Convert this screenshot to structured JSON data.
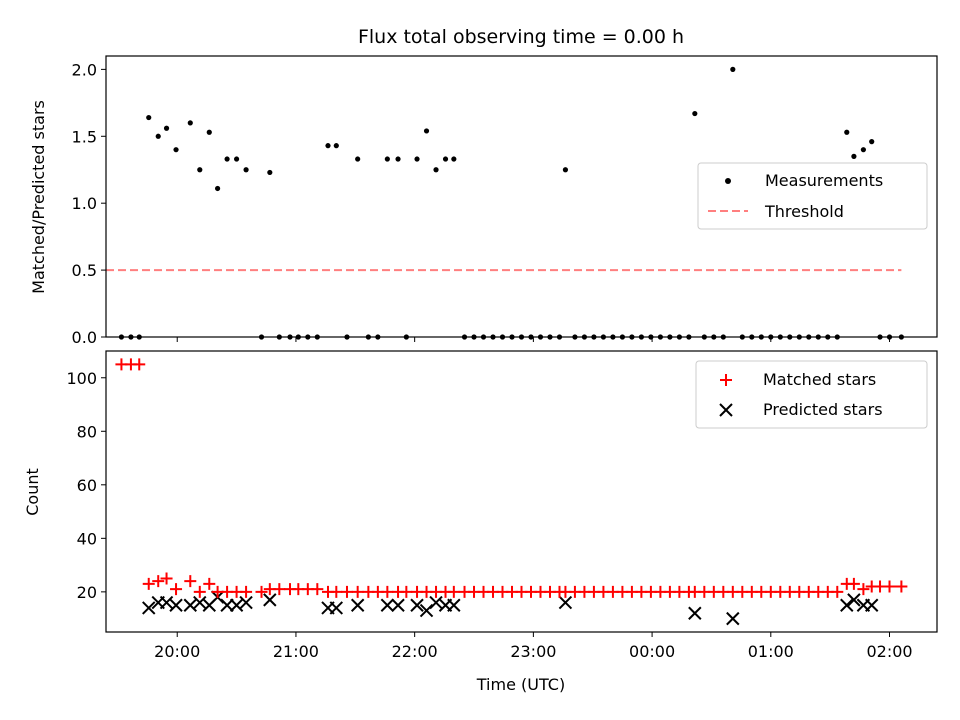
{
  "chart_data": {
    "type": "scatter",
    "title": "Flux total observing time = 0.00 h",
    "xlabel": "Time (UTC)",
    "x_unit": "hours since 19:00 UTC",
    "x_ticks": [
      {
        "value": 1,
        "label": "20:00"
      },
      {
        "value": 2,
        "label": "21:00"
      },
      {
        "value": 3,
        "label": "22:00"
      },
      {
        "value": 4,
        "label": "23:00"
      },
      {
        "value": 5,
        "label": "00:00"
      },
      {
        "value": 6,
        "label": "01:00"
      },
      {
        "value": 7,
        "label": "02:00"
      }
    ],
    "xlim": [
      0.4,
      7.4
    ],
    "colors": {
      "measurements": "#000000",
      "threshold": "#ff7f7f",
      "matched": "#ff0000",
      "predicted": "#000000"
    },
    "panels": [
      {
        "id": "ratio",
        "ylabel": "Matched/Predicted stars",
        "ylim": [
          0,
          2.1
        ],
        "y_ticks": [
          {
            "value": 0.0,
            "label": "0.0"
          },
          {
            "value": 0.5,
            "label": "0.5"
          },
          {
            "value": 1.0,
            "label": "1.0"
          },
          {
            "value": 1.5,
            "label": "1.5"
          },
          {
            "value": 2.0,
            "label": "2.0"
          }
        ],
        "legend_position": "center-right",
        "legend": {
          "measurements": "Measurements",
          "threshold": "Threshold"
        },
        "threshold": {
          "value": 0.5,
          "x_start": 0.4,
          "x_end": 7.1
        },
        "measurements": [
          [
            0.53,
            0
          ],
          [
            0.61,
            0
          ],
          [
            0.68,
            0
          ],
          [
            0.76,
            1.64
          ],
          [
            0.84,
            1.5
          ],
          [
            0.91,
            1.56
          ],
          [
            0.99,
            1.4
          ],
          [
            1.11,
            1.6
          ],
          [
            1.19,
            1.25
          ],
          [
            1.27,
            1.53
          ],
          [
            1.34,
            1.11
          ],
          [
            1.42,
            1.33
          ],
          [
            1.5,
            1.33
          ],
          [
            1.58,
            1.25
          ],
          [
            1.71,
            0
          ],
          [
            1.78,
            1.23
          ],
          [
            1.86,
            0
          ],
          [
            1.95,
            0
          ],
          [
            2.02,
            0
          ],
          [
            2.1,
            0
          ],
          [
            2.18,
            0
          ],
          [
            2.27,
            1.43
          ],
          [
            2.34,
            1.43
          ],
          [
            2.43,
            0
          ],
          [
            2.52,
            1.33
          ],
          [
            2.61,
            0
          ],
          [
            2.69,
            0
          ],
          [
            2.77,
            1.33
          ],
          [
            2.86,
            1.33
          ],
          [
            2.93,
            0
          ],
          [
            3.02,
            1.33
          ],
          [
            3.1,
            1.54
          ],
          [
            3.18,
            1.25
          ],
          [
            3.26,
            1.33
          ],
          [
            3.33,
            1.33
          ],
          [
            3.42,
            0
          ],
          [
            3.5,
            0
          ],
          [
            3.58,
            0
          ],
          [
            3.66,
            0
          ],
          [
            3.74,
            0
          ],
          [
            3.82,
            0
          ],
          [
            3.9,
            0
          ],
          [
            3.98,
            0
          ],
          [
            4.06,
            0
          ],
          [
            4.14,
            0
          ],
          [
            4.22,
            0
          ],
          [
            4.27,
            1.25
          ],
          [
            4.35,
            0
          ],
          [
            4.43,
            0
          ],
          [
            4.51,
            0
          ],
          [
            4.59,
            0
          ],
          [
            4.67,
            0
          ],
          [
            4.75,
            0
          ],
          [
            4.83,
            0
          ],
          [
            4.91,
            0
          ],
          [
            4.99,
            0
          ],
          [
            5.07,
            0
          ],
          [
            5.15,
            0
          ],
          [
            5.23,
            0
          ],
          [
            5.31,
            0
          ],
          [
            5.36,
            1.67
          ],
          [
            5.44,
            0
          ],
          [
            5.52,
            0
          ],
          [
            5.6,
            0
          ],
          [
            5.68,
            2.0
          ],
          [
            5.76,
            0
          ],
          [
            5.84,
            0
          ],
          [
            5.92,
            0
          ],
          [
            6.0,
            0
          ],
          [
            6.08,
            0
          ],
          [
            6.16,
            0
          ],
          [
            6.24,
            0
          ],
          [
            6.32,
            0
          ],
          [
            6.4,
            0
          ],
          [
            6.48,
            0
          ],
          [
            6.56,
            0
          ],
          [
            6.64,
            1.53
          ],
          [
            6.7,
            1.35
          ],
          [
            6.78,
            1.4
          ],
          [
            6.85,
            1.46
          ],
          [
            6.92,
            0
          ],
          [
            7.0,
            0
          ],
          [
            7.1,
            0
          ]
        ]
      },
      {
        "id": "count",
        "ylabel": "Count",
        "ylim": [
          5,
          110
        ],
        "y_ticks": [
          {
            "value": 20,
            "label": "20"
          },
          {
            "value": 40,
            "label": "40"
          },
          {
            "value": 60,
            "label": "60"
          },
          {
            "value": 80,
            "label": "80"
          },
          {
            "value": 100,
            "label": "100"
          }
        ],
        "legend_position": "top-right",
        "legend": {
          "matched": "Matched stars",
          "predicted": "Predicted stars"
        },
        "matched_stars": [
          [
            0.53,
            105
          ],
          [
            0.61,
            105
          ],
          [
            0.68,
            105
          ],
          [
            0.76,
            23
          ],
          [
            0.84,
            24
          ],
          [
            0.91,
            25
          ],
          [
            0.99,
            21
          ],
          [
            1.11,
            24
          ],
          [
            1.19,
            20
          ],
          [
            1.27,
            23
          ],
          [
            1.34,
            20
          ],
          [
            1.42,
            20
          ],
          [
            1.5,
            20
          ],
          [
            1.58,
            20
          ],
          [
            1.71,
            20
          ],
          [
            1.78,
            21
          ],
          [
            1.86,
            21
          ],
          [
            1.95,
            21
          ],
          [
            2.02,
            21
          ],
          [
            2.1,
            21
          ],
          [
            2.18,
            21
          ],
          [
            2.27,
            20
          ],
          [
            2.34,
            20
          ],
          [
            2.43,
            20
          ],
          [
            2.52,
            20
          ],
          [
            2.61,
            20
          ],
          [
            2.69,
            20
          ],
          [
            2.77,
            20
          ],
          [
            2.86,
            20
          ],
          [
            2.93,
            20
          ],
          [
            3.02,
            20
          ],
          [
            3.1,
            20
          ],
          [
            3.18,
            20
          ],
          [
            3.26,
            20
          ],
          [
            3.33,
            20
          ],
          [
            3.42,
            20
          ],
          [
            3.5,
            20
          ],
          [
            3.58,
            20
          ],
          [
            3.66,
            20
          ],
          [
            3.74,
            20
          ],
          [
            3.82,
            20
          ],
          [
            3.9,
            20
          ],
          [
            3.98,
            20
          ],
          [
            4.06,
            20
          ],
          [
            4.14,
            20
          ],
          [
            4.22,
            20
          ],
          [
            4.27,
            20
          ],
          [
            4.35,
            20
          ],
          [
            4.43,
            20
          ],
          [
            4.51,
            20
          ],
          [
            4.59,
            20
          ],
          [
            4.67,
            20
          ],
          [
            4.75,
            20
          ],
          [
            4.83,
            20
          ],
          [
            4.91,
            20
          ],
          [
            4.99,
            20
          ],
          [
            5.07,
            20
          ],
          [
            5.15,
            20
          ],
          [
            5.23,
            20
          ],
          [
            5.31,
            20
          ],
          [
            5.36,
            20
          ],
          [
            5.44,
            20
          ],
          [
            5.52,
            20
          ],
          [
            5.6,
            20
          ],
          [
            5.68,
            20
          ],
          [
            5.76,
            20
          ],
          [
            5.84,
            20
          ],
          [
            5.92,
            20
          ],
          [
            6.0,
            20
          ],
          [
            6.08,
            20
          ],
          [
            6.16,
            20
          ],
          [
            6.24,
            20
          ],
          [
            6.32,
            20
          ],
          [
            6.4,
            20
          ],
          [
            6.48,
            20
          ],
          [
            6.56,
            20
          ],
          [
            6.64,
            23
          ],
          [
            6.7,
            23
          ],
          [
            6.78,
            21
          ],
          [
            6.85,
            22
          ],
          [
            6.92,
            22
          ],
          [
            7.0,
            22
          ],
          [
            7.1,
            22
          ]
        ],
        "predicted_stars": [
          [
            0.76,
            14
          ],
          [
            0.84,
            16
          ],
          [
            0.91,
            16
          ],
          [
            0.99,
            15
          ],
          [
            1.11,
            15
          ],
          [
            1.19,
            16
          ],
          [
            1.27,
            15
          ],
          [
            1.34,
            18
          ],
          [
            1.42,
            15
          ],
          [
            1.5,
            15
          ],
          [
            1.58,
            16
          ],
          [
            1.78,
            17
          ],
          [
            2.27,
            14
          ],
          [
            2.34,
            14
          ],
          [
            2.52,
            15
          ],
          [
            2.77,
            15
          ],
          [
            2.86,
            15
          ],
          [
            3.02,
            15
          ],
          [
            3.1,
            13
          ],
          [
            3.18,
            16
          ],
          [
            3.26,
            15
          ],
          [
            3.33,
            15
          ],
          [
            4.27,
            16
          ],
          [
            5.36,
            12
          ],
          [
            5.68,
            10
          ],
          [
            6.64,
            15
          ],
          [
            6.7,
            17
          ],
          [
            6.78,
            15
          ],
          [
            6.85,
            15
          ]
        ]
      }
    ]
  }
}
